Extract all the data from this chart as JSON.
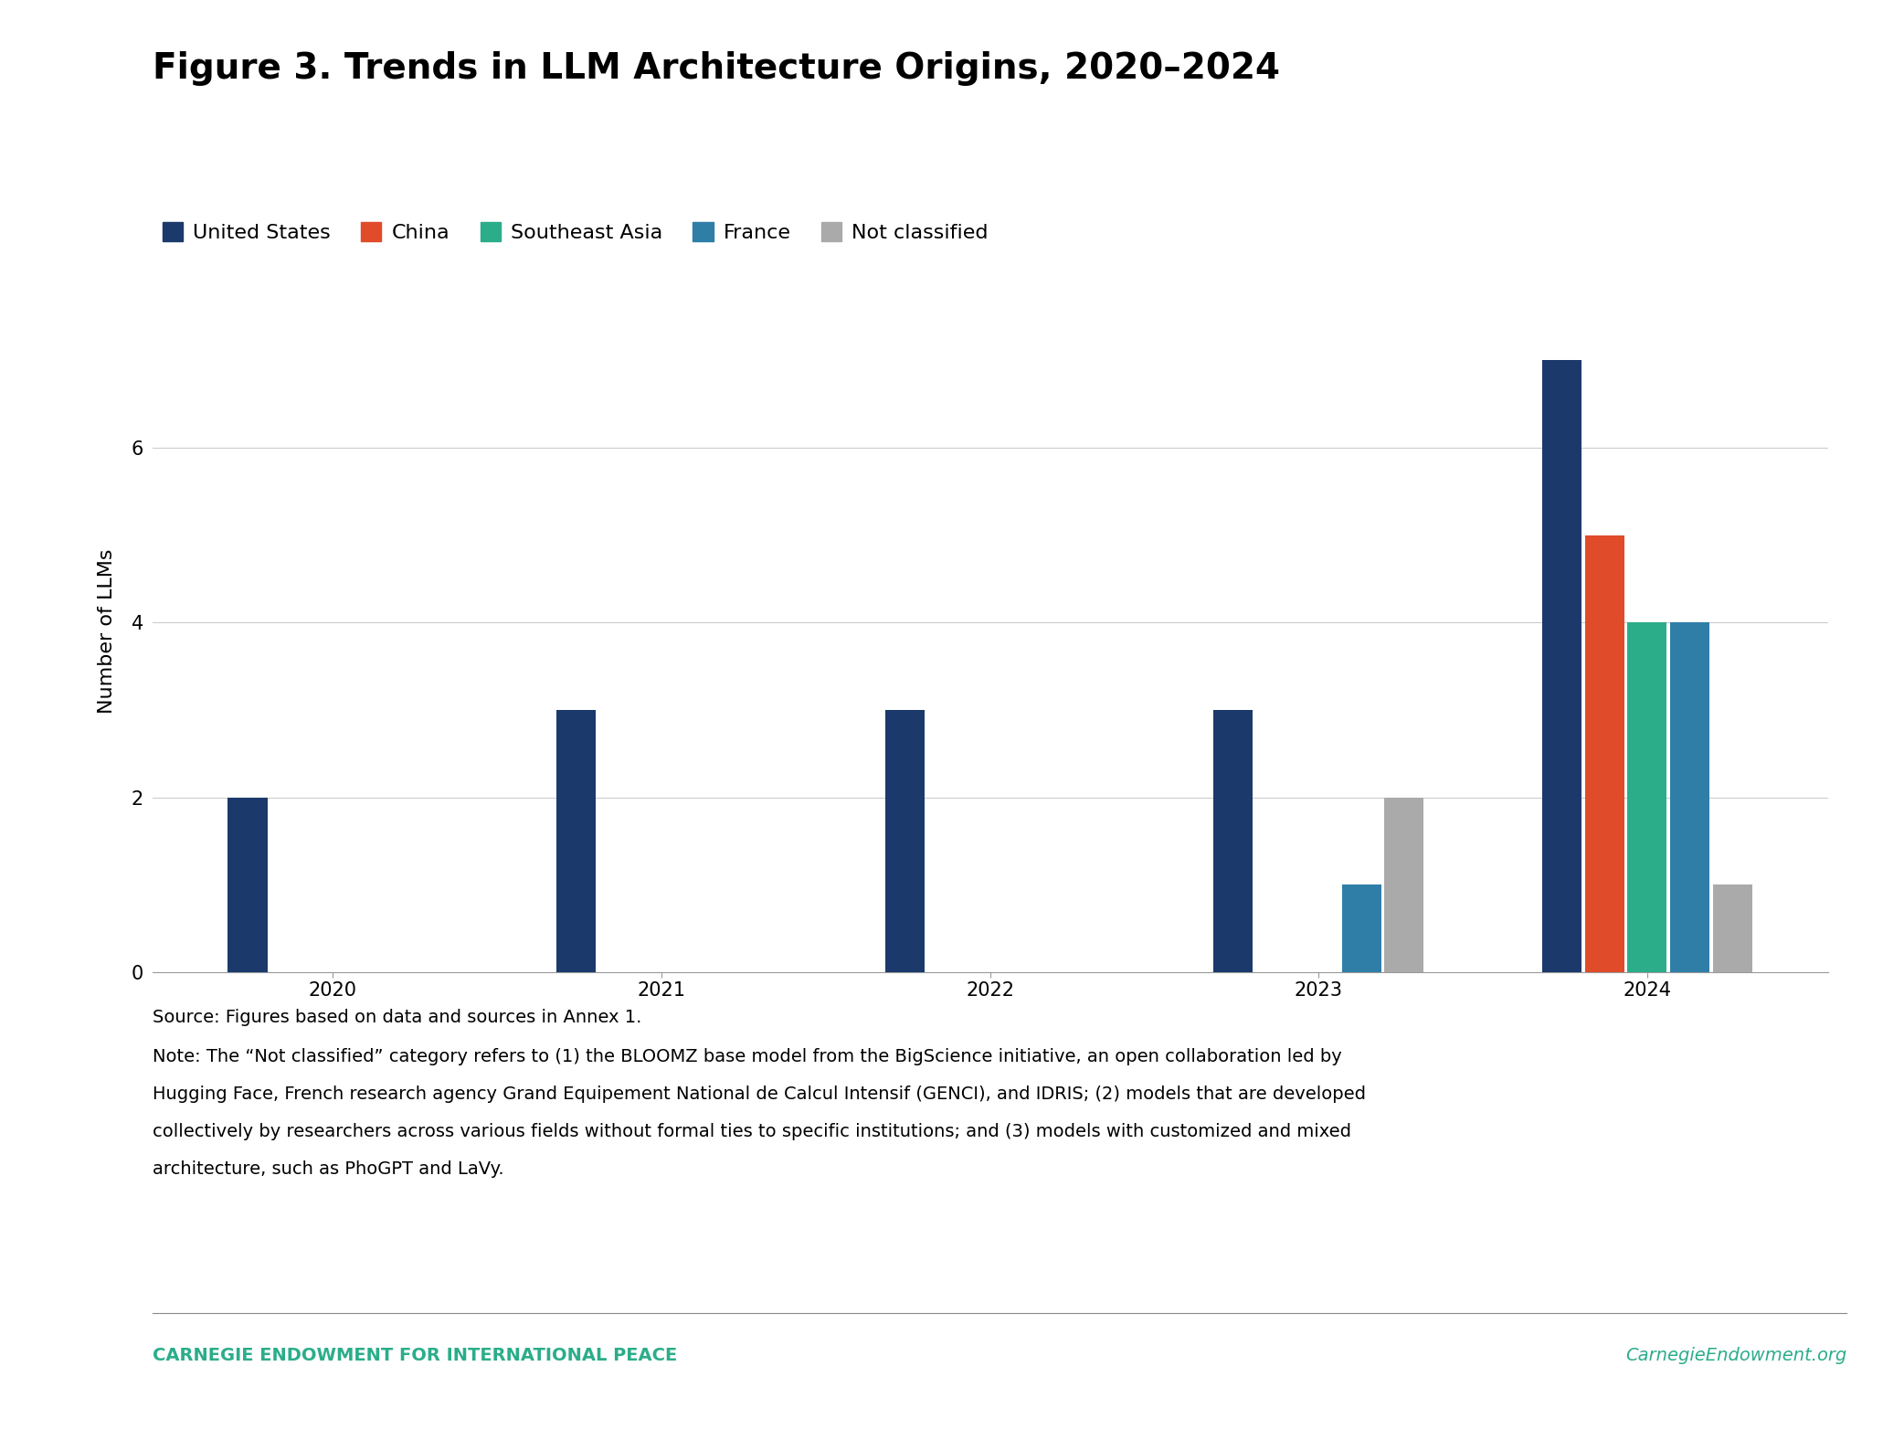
{
  "title": "Figure 3. Trends in LLM Architecture Origins, 2020–2024",
  "ylabel": "Number of LLMs",
  "years": [
    2020,
    2021,
    2022,
    2023,
    2024
  ],
  "categories": [
    "United States",
    "China",
    "Southeast Asia",
    "France",
    "Not classified"
  ],
  "colors": [
    "#1B3A6B",
    "#E04B2A",
    "#2BAD8A",
    "#2E7EA8",
    "#AAAAAA"
  ],
  "data": {
    "United States": [
      2,
      3,
      3,
      3,
      7
    ],
    "China": [
      0,
      0,
      0,
      0,
      5
    ],
    "Southeast Asia": [
      0,
      0,
      0,
      0,
      4
    ],
    "France": [
      0,
      0,
      0,
      1,
      4
    ],
    "Not classified": [
      0,
      0,
      0,
      2,
      1
    ]
  },
  "ylim": [
    0,
    7.8
  ],
  "yticks": [
    0,
    2,
    4,
    6
  ],
  "bar_width": 0.13,
  "source_text": "Source: Figures based on data and sources in Annex 1.",
  "note_text": "Note: The “Not classified” category refers to (1) the BLOOMZ base model from the BigScience initiative, an open collaboration led by Hugging Face, French research agency Grand Equipement National de Calcul Intensif (GENCI), and IDRIS; (2) models that are developed collectively by researchers across various fields without formal ties to specific institutions; and (3) models with customized and mixed architecture, such as PhoGPT and LaVy.",
  "footer_left": "CARNEGIE ENDOWMENT FOR INTERNATIONAL PEACE",
  "footer_right": "CarnegieEndowment.org",
  "footer_color": "#2BAD8A",
  "title_fontsize": 28,
  "legend_fontsize": 16,
  "axis_label_fontsize": 16,
  "tick_fontsize": 15,
  "note_fontsize": 14,
  "footer_fontsize": 14
}
